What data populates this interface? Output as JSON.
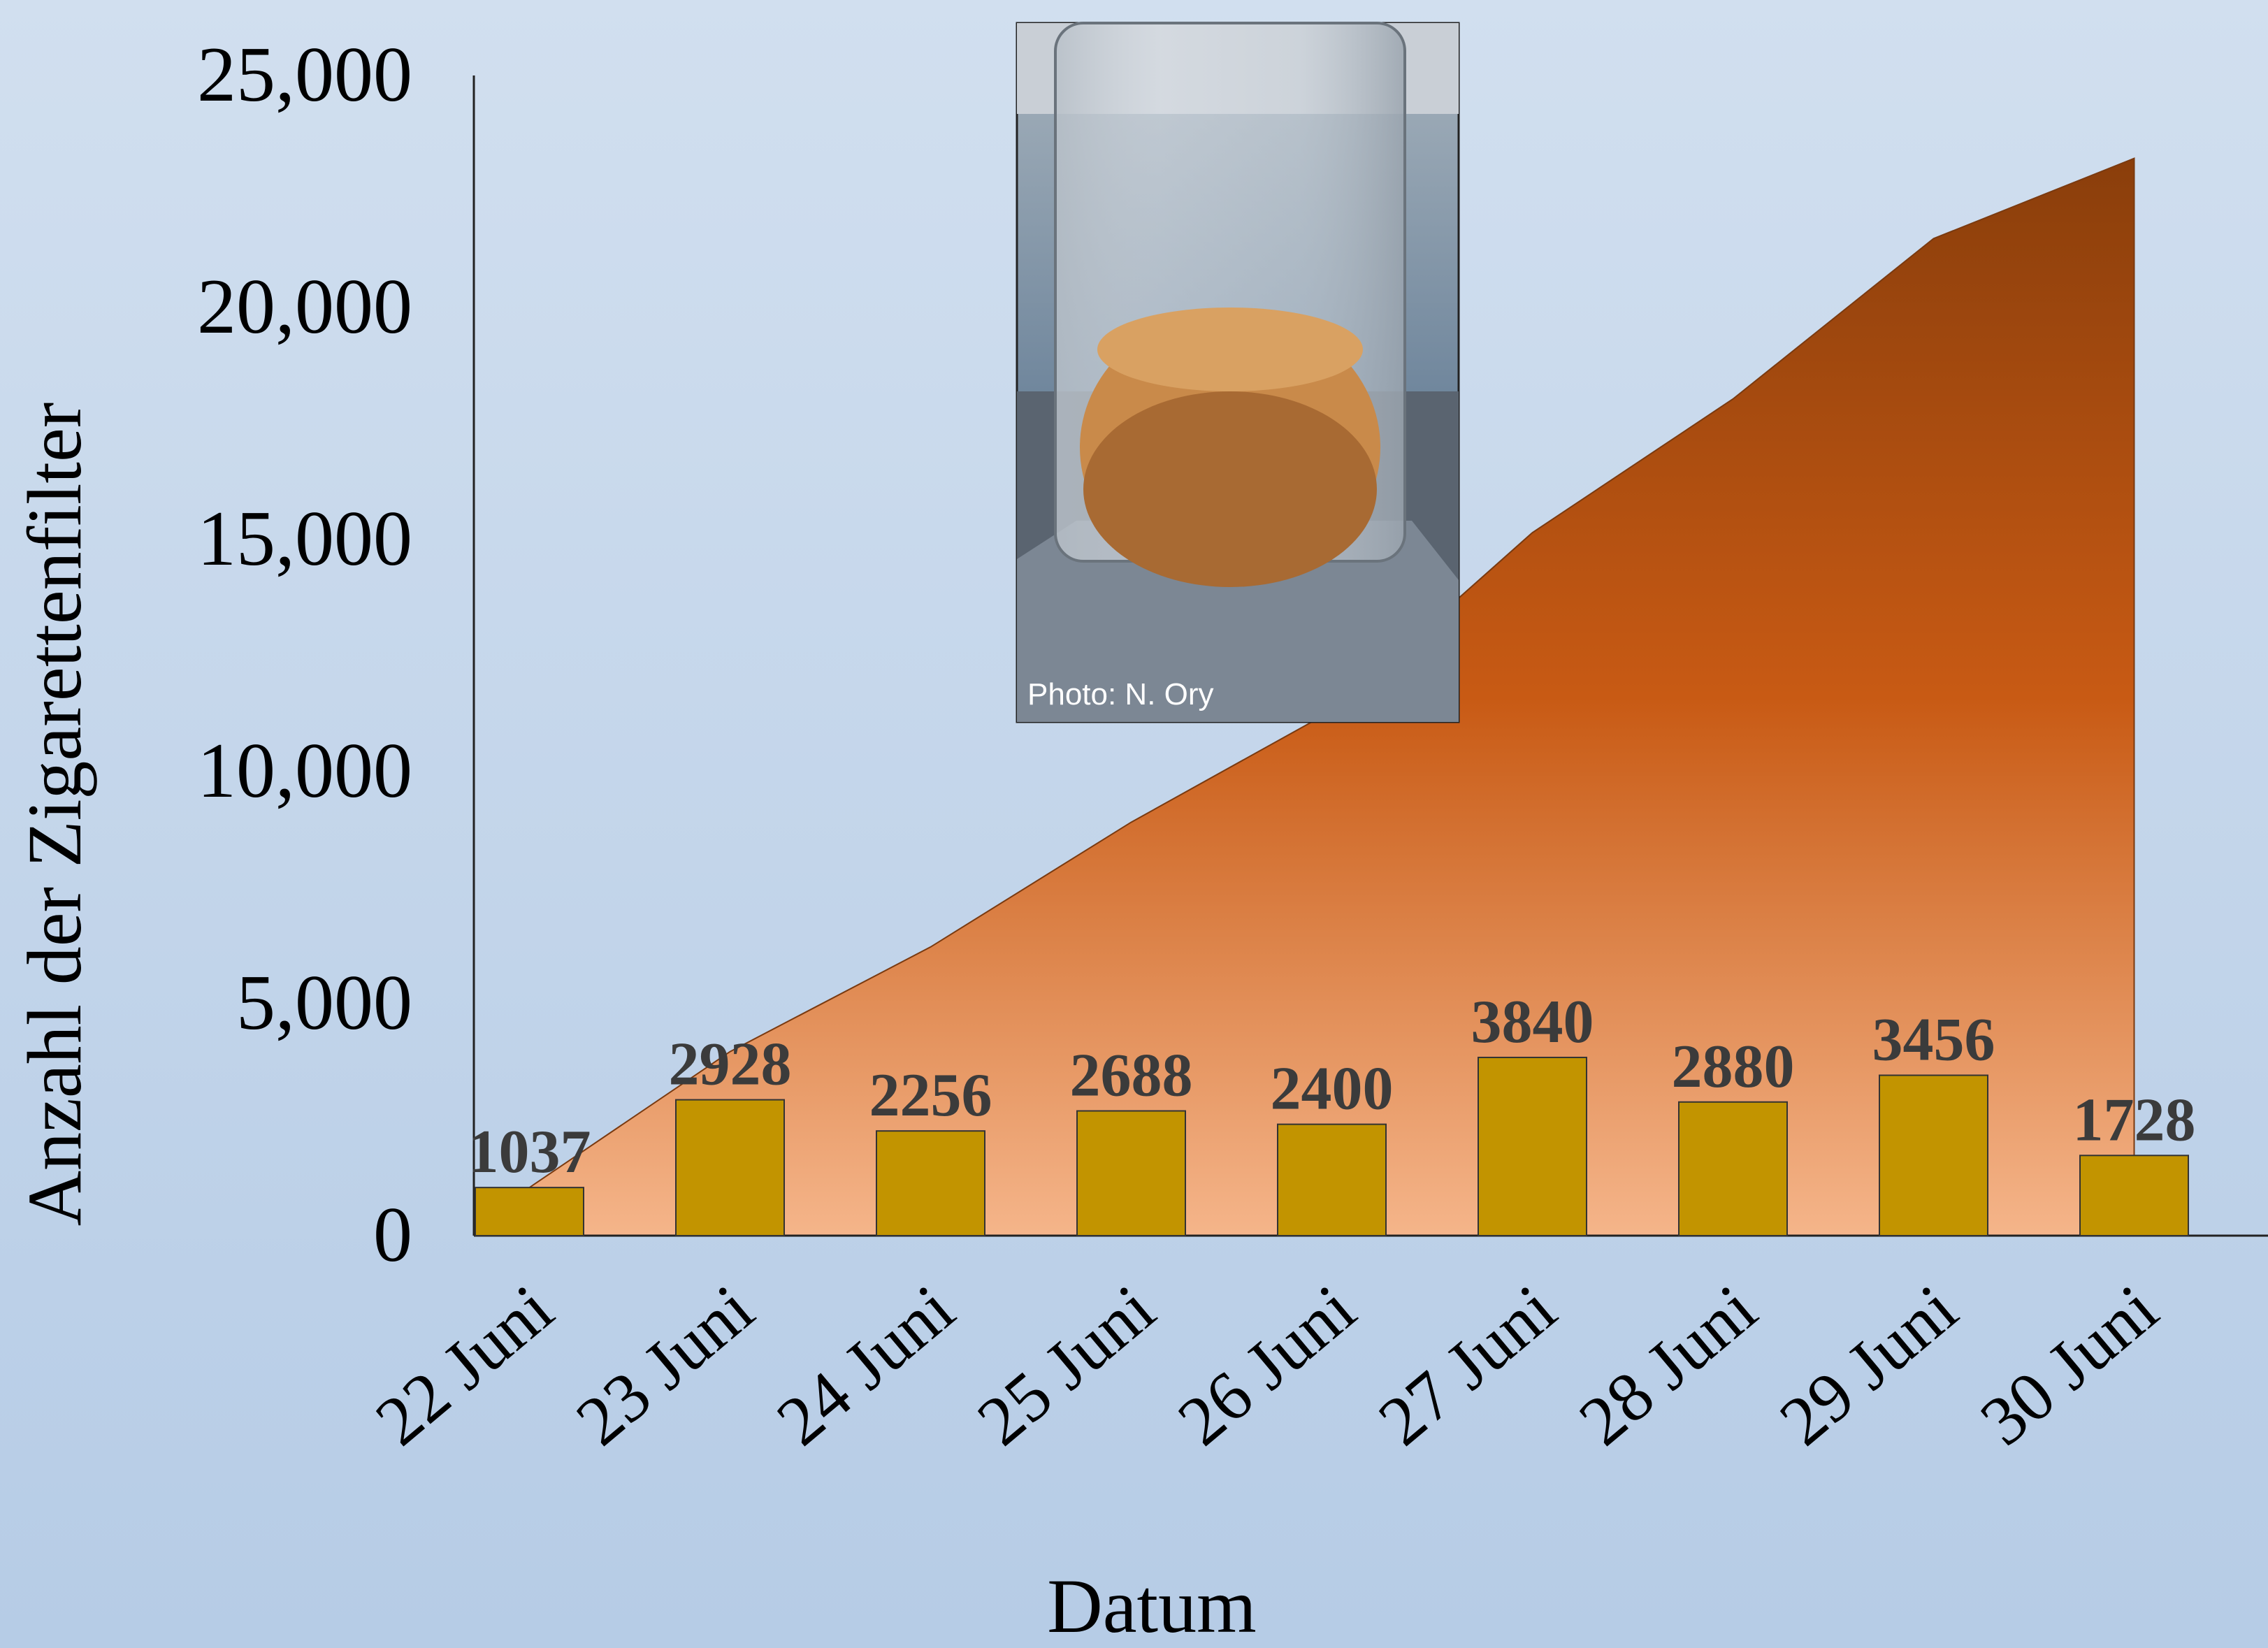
{
  "chart_data": {
    "type": "bar",
    "categories": [
      "22 Juni",
      "23 Juni",
      "24 Juni",
      "25 Juni",
      "26 Juni",
      "27 Juni",
      "28 Juni",
      "29 Juni",
      "30 Juni"
    ],
    "values": [
      1037,
      2928,
      2256,
      2688,
      2400,
      3840,
      2880,
      3456,
      1728
    ],
    "data_labels": [
      "1037",
      "2928",
      "2256",
      "2688",
      "2400",
      "3840",
      "2880",
      "3456",
      "1728"
    ],
    "cumulative": {
      "type": "area",
      "values": [
        1037,
        3965,
        6221,
        8909,
        11309,
        15149,
        18029,
        21485,
        23213
      ]
    },
    "xlabel": "Datum",
    "ylabel": "Anzahl der Zigarettenfilter",
    "ylim": [
      0,
      25000
    ],
    "yticks": [
      "0",
      "5,000",
      "10,000",
      "15,000",
      "20,000",
      "25,000"
    ],
    "yticks_values": [
      0,
      5000,
      10000,
      15000,
      20000,
      25000
    ],
    "grid": false,
    "colors": {
      "bar": "#c29400",
      "area_top": "#8a3e0b",
      "area_mid": "#c85a14",
      "area_bottom": "#f5b58a"
    }
  },
  "inset_photo": {
    "icon": "ashtray-photo",
    "credit": "Photo: N. Ory"
  }
}
